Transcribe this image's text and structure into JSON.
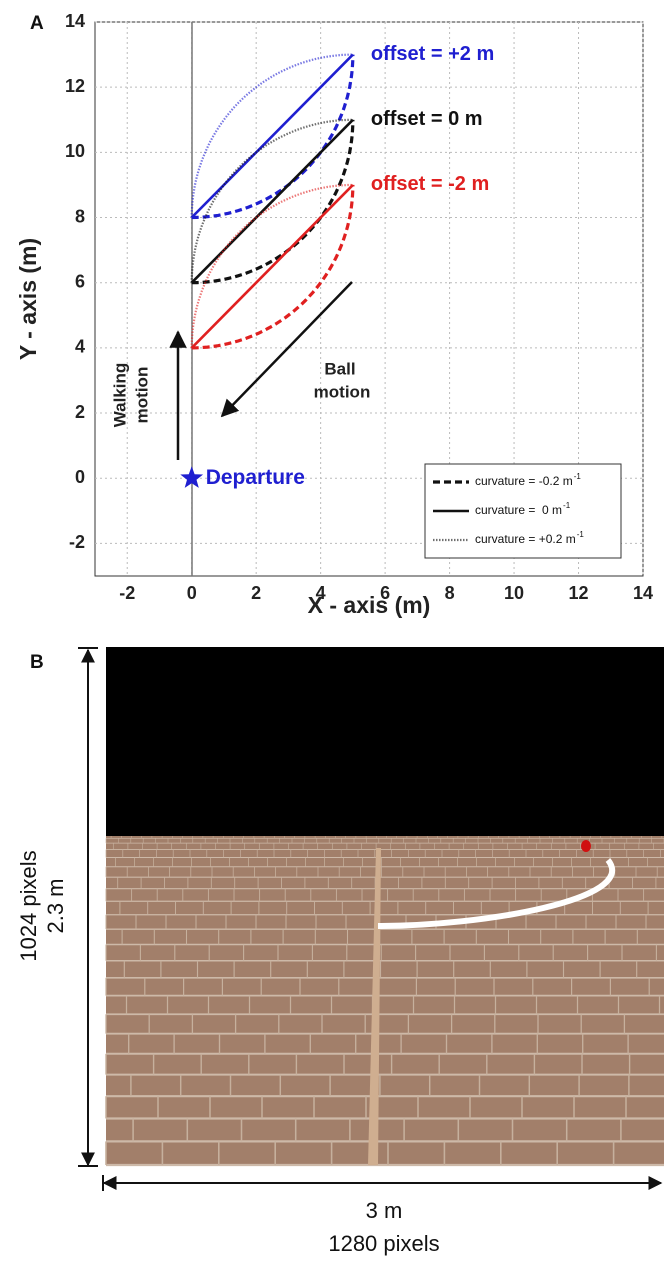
{
  "panel_labels": [
    "A",
    "B"
  ],
  "chart_data": {
    "type": "trajectory",
    "xlabel": "X - axis (m)",
    "ylabel": "Y - axis (m)",
    "xlim": [
      -3,
      14
    ],
    "ylim": [
      -3,
      14
    ],
    "xticks": [
      -2,
      0,
      2,
      4,
      6,
      8,
      10,
      12,
      14
    ],
    "yticks": [
      -2,
      0,
      2,
      4,
      6,
      8,
      10,
      12,
      14
    ],
    "grid": true,
    "series": [
      {
        "name": "offset = +2 m",
        "color": "#1f1fd0",
        "start": [
          0,
          8
        ],
        "end": [
          5,
          13
        ]
      },
      {
        "name": "offset = 0 m",
        "color": "#111111",
        "start": [
          0,
          6
        ],
        "end": [
          5,
          11
        ]
      },
      {
        "name": "offset = -2 m",
        "color": "#e02020",
        "start": [
          0,
          4
        ],
        "end": [
          5,
          9
        ]
      }
    ],
    "legend": [
      {
        "label": "curvature = -0.2 m",
        "superscript": "-1",
        "curvature": -0.2,
        "style": "dashed"
      },
      {
        "label": "curvature =  0 m",
        "superscript": "-1",
        "curvature": 0,
        "style": "solid"
      },
      {
        "label": "curvature = +0.2 m",
        "superscript": "-1",
        "curvature": 0.2,
        "style": "dotted"
      }
    ],
    "legend_position": "lower right",
    "departure": {
      "label": "Departure",
      "x": 0,
      "y": 0,
      "color": "#1f1fd0"
    },
    "walking_label": [
      "Walking",
      "motion"
    ],
    "ball_label": [
      "Ball",
      "motion"
    ]
  },
  "panel_b": {
    "height_pixels": "1024 pixels",
    "height_m": "2.3 m",
    "width_m": "3 m",
    "width_pixels": "1280 pixels"
  }
}
